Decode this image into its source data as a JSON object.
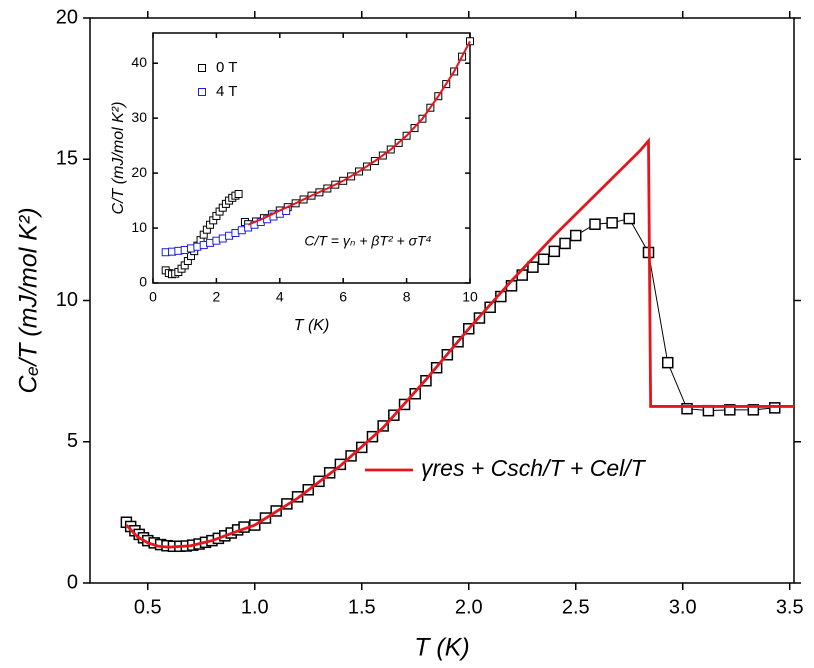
{
  "chart_data": [
    {
      "type": "scatter",
      "xlabel": "T (K)",
      "ylabel": "Cₑ/T (mJ/mol K²)",
      "xlim": [
        0.23,
        3.52
      ],
      "ylim": [
        0,
        20
      ],
      "xticks": [
        0.5,
        {
          "value": 1,
          "label": "1.0"
        },
        1.5,
        {
          "value": 2,
          "label": "2.0"
        },
        2.5,
        {
          "value": 3,
          "label": "3.0"
        },
        3.5
      ],
      "yticks": [
        0,
        5,
        10,
        15,
        20
      ],
      "legend": "lower right",
      "series": [
        {
          "color": "#000000",
          "mode": "lines+markers",
          "x": [
            0.4,
            0.42,
            0.44,
            0.46,
            0.48,
            0.5,
            0.53,
            0.56,
            0.59,
            0.62,
            0.65,
            0.68,
            0.71,
            0.74,
            0.77,
            0.8,
            0.83,
            0.86,
            0.89,
            0.92,
            0.95,
            1.0,
            1.05,
            1.1,
            1.15,
            1.2,
            1.25,
            1.3,
            1.35,
            1.4,
            1.45,
            1.5,
            1.55,
            1.6,
            1.65,
            1.7,
            1.75,
            1.8,
            1.85,
            1.9,
            1.95,
            2.0,
            2.05,
            2.1,
            2.15,
            2.2,
            2.25,
            2.3,
            2.35,
            2.4,
            2.45,
            2.5,
            2.59,
            2.67,
            2.75,
            2.84,
            2.93,
            3.02,
            3.12,
            3.22,
            3.33,
            3.43
          ],
          "values": [
            2.15,
            2.0,
            1.85,
            1.72,
            1.6,
            1.5,
            1.42,
            1.36,
            1.32,
            1.3,
            1.3,
            1.31,
            1.34,
            1.38,
            1.44,
            1.5,
            1.58,
            1.67,
            1.77,
            1.88,
            1.98,
            2.05,
            2.3,
            2.55,
            2.8,
            3.05,
            3.3,
            3.6,
            3.9,
            4.2,
            4.5,
            4.8,
            5.18,
            5.56,
            5.94,
            6.32,
            6.7,
            7.16,
            7.62,
            8.08,
            8.54,
            9.0,
            9.38,
            9.76,
            10.14,
            10.52,
            10.9,
            11.18,
            11.46,
            11.74,
            12.02,
            12.3,
            12.7,
            12.75,
            12.9,
            11.7,
            7.8,
            6.17,
            6.1,
            6.13,
            6.13,
            6.2
          ]
        },
        {
          "name": "γres + Csch/T + Cel/T",
          "color": "#e8141c",
          "mode": "lines",
          "x": [
            0.4,
            0.45,
            0.5,
            0.55,
            0.6,
            0.7,
            0.8,
            0.9,
            1.0,
            1.2,
            1.4,
            1.6,
            1.8,
            2.0,
            2.2,
            2.4,
            2.6,
            2.8,
            2.84,
            2.85,
            3.52
          ],
          "values": [
            2.05,
            1.65,
            1.42,
            1.3,
            1.27,
            1.32,
            1.5,
            1.78,
            2.05,
            3.0,
            4.15,
            5.5,
            7.2,
            9.0,
            10.7,
            12.3,
            13.8,
            15.3,
            15.65,
            6.25,
            6.25
          ]
        }
      ]
    },
    {
      "type": "scatter",
      "xlabel": "T (K)",
      "ylabel": "C/T (mJ/mol K²)",
      "annotation": "C/T = γₙ + βT² + σT⁴",
      "xlim": [
        0,
        10
      ],
      "ylim": [
        0,
        45.5
      ],
      "xticks": [
        0,
        2,
        4,
        6,
        8,
        10
      ],
      "yticks": [
        0,
        10,
        20,
        30,
        40
      ],
      "legend": "upper left",
      "series": [
        {
          "name": "0 T",
          "color": "#000000",
          "mode": "markers",
          "x": [
            0.4,
            0.5,
            0.6,
            0.7,
            0.8,
            0.9,
            1.0,
            1.1,
            1.2,
            1.3,
            1.4,
            1.5,
            1.6,
            1.7,
            1.8,
            1.9,
            2.0,
            2.1,
            2.2,
            2.3,
            2.4,
            2.5,
            2.6,
            2.7,
            2.9,
            3.0,
            3.25,
            3.5,
            3.75,
            4.0,
            4.25,
            4.5,
            4.75,
            5.0,
            5.25,
            5.5,
            5.75,
            6.0,
            6.25,
            6.5,
            6.75,
            7.0,
            7.25,
            7.5,
            7.75,
            8.0,
            8.25,
            8.5,
            8.75,
            9.0,
            9.25,
            9.5,
            9.75,
            10.0
          ],
          "values": [
            2.3,
            1.8,
            1.6,
            1.7,
            2.0,
            2.6,
            3.2,
            4.0,
            4.9,
            5.8,
            6.8,
            7.8,
            8.8,
            9.7,
            10.6,
            11.4,
            12.2,
            13.0,
            13.7,
            14.4,
            15.0,
            15.5,
            15.9,
            16.2,
            11.1,
            10.7,
            11.2,
            11.8,
            12.5,
            13.2,
            13.8,
            14.5,
            15.2,
            15.9,
            16.5,
            17.2,
            17.9,
            18.6,
            19.4,
            20.3,
            21.2,
            22.2,
            23.2,
            24.3,
            25.5,
            26.8,
            28.2,
            29.9,
            31.9,
            34.0,
            36.2,
            38.5,
            41.2,
            44.0
          ]
        },
        {
          "name": "4 T",
          "color": "#1f1fe0",
          "mode": "markers",
          "x": [
            0.4,
            0.6,
            0.8,
            1.0,
            1.2,
            1.4,
            1.6,
            1.8,
            2.0,
            2.2,
            2.4,
            2.6,
            2.8,
            3.0,
            3.2,
            3.4,
            3.6,
            3.8,
            4.0,
            4.2
          ],
          "values": [
            5.6,
            5.7,
            5.85,
            6.0,
            6.3,
            6.6,
            6.9,
            7.3,
            7.7,
            8.1,
            8.6,
            9.1,
            9.6,
            10.1,
            10.6,
            11.1,
            11.6,
            12.1,
            12.6,
            13.1
          ]
        },
        {
          "color": "#e8141c",
          "mode": "lines",
          "x": [
            3.0,
            3.5,
            4.0,
            4.5,
            5.0,
            5.5,
            6.0,
            6.5,
            7.0,
            7.5,
            8.0,
            8.5,
            9.0,
            9.5,
            10.0
          ],
          "values": [
            10.6,
            11.8,
            13.2,
            14.5,
            15.9,
            17.2,
            18.6,
            20.3,
            22.2,
            24.3,
            26.8,
            29.9,
            34.0,
            38.5,
            44.0
          ]
        }
      ]
    }
  ]
}
